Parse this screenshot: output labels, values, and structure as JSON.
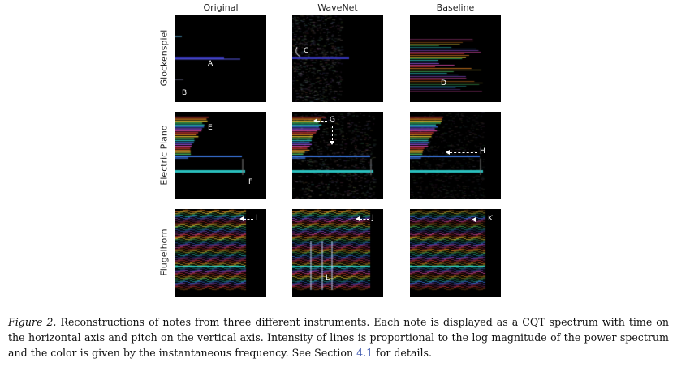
{
  "columns": [
    "Original",
    "WaveNet",
    "Baseline"
  ],
  "rows": [
    "Glockenspiel",
    "Electric Piano",
    "Flugelhorn"
  ],
  "markers": {
    "A": "A",
    "B": "B",
    "C": "C",
    "D": "D",
    "E": "E",
    "F": "F",
    "G": "G",
    "H": "H",
    "I": "I",
    "J": "J",
    "K": "K",
    "L": "L"
  },
  "caption": {
    "figure_label": "Figure 2.",
    "text": " Reconstructions of notes from three different instruments. Each note is displayed as a CQT spectrum with time on the horizontal axis and pitch on the vertical axis. Intensity of lines is proportional to the log magnitude of the power spectrum and the color is given by the instantaneous frequency. See Section ",
    "section_ref": "4.1",
    "text_end": " for details."
  }
}
